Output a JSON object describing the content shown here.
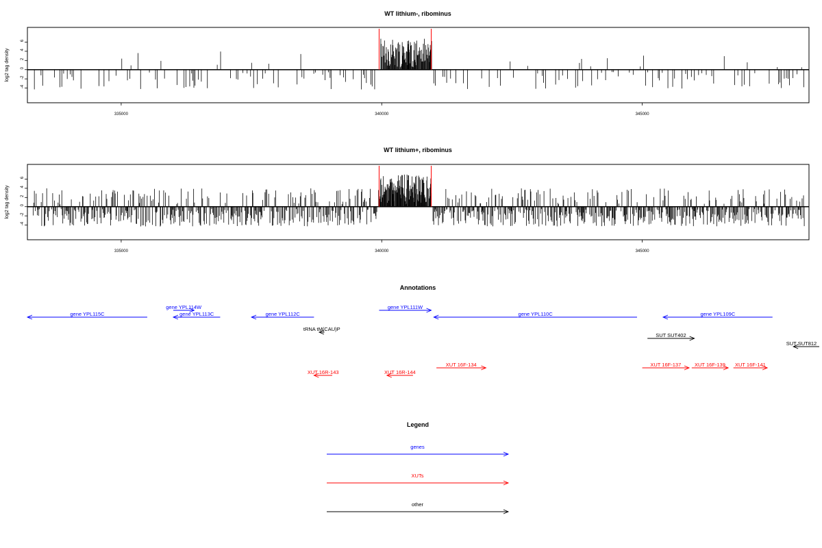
{
  "chart_data": [
    {
      "type": "bar",
      "title": "WT lithium-, ribominus",
      "ylabel": "log2 tag density",
      "xlim": [
        333200,
        348200
      ],
      "ylim": [
        -6,
        8
      ],
      "x_ticks": [
        335000,
        340000,
        345000
      ],
      "y_ticks": [
        -4,
        -2,
        0,
        2,
        4,
        6
      ],
      "grid": false,
      "region_markers": [
        339950,
        340950
      ],
      "density": "sparse"
    },
    {
      "type": "bar",
      "title": "WT lithium+, ribominus",
      "ylabel": "log2 tag density",
      "xlim": [
        333200,
        348200
      ],
      "ylim": [
        -6,
        8
      ],
      "x_ticks": [
        335000,
        340000,
        345000
      ],
      "y_ticks": [
        -4,
        -2,
        0,
        2,
        4,
        6
      ],
      "grid": false,
      "region_markers": [
        339950,
        340950
      ],
      "density": "dense"
    }
  ],
  "annotations": {
    "title": "Annotations",
    "features": [
      {
        "label": "gene YPL115C",
        "type": "genes",
        "start": 333200,
        "end": 335500,
        "strand": "-",
        "row": 1
      },
      {
        "label": "gene YPL114W",
        "type": "genes",
        "start": 336000,
        "end": 336400,
        "strand": "+",
        "row": 0
      },
      {
        "label": "gene YPL113C",
        "type": "genes",
        "start": 336000,
        "end": 336900,
        "strand": "-",
        "row": 1
      },
      {
        "label": "gene YPL112C",
        "type": "genes",
        "start": 337500,
        "end": 338700,
        "strand": "-",
        "row": 1
      },
      {
        "label": "tRNA tM(CAU)P",
        "type": "other",
        "start": 338800,
        "end": 338900,
        "strand": "-",
        "row": 2
      },
      {
        "label": "gene YPL111W",
        "type": "genes",
        "start": 339950,
        "end": 340950,
        "strand": "+",
        "row": 0
      },
      {
        "label": "gene YPL110C",
        "type": "genes",
        "start": 341000,
        "end": 344900,
        "strand": "-",
        "row": 1
      },
      {
        "label": "gene YPL109C",
        "type": "genes",
        "start": 345400,
        "end": 347500,
        "strand": "-",
        "row": 1
      },
      {
        "label": "SUT SUT402",
        "type": "other",
        "start": 345100,
        "end": 346000,
        "strand": "+",
        "row": 3
      },
      {
        "label": "SUT SUT812",
        "type": "other",
        "start": 347900,
        "end": 348500,
        "strand": "-",
        "row": 4
      },
      {
        "label": "XUT 16R-143",
        "type": "XUTs",
        "start": 338700,
        "end": 339050,
        "strand": "-",
        "row": 6
      },
      {
        "label": "XUT 16R-144",
        "type": "XUTs",
        "start": 340100,
        "end": 340600,
        "strand": "-",
        "row": 6
      },
      {
        "label": "XUT 16F-134",
        "type": "XUTs",
        "start": 341050,
        "end": 342000,
        "strand": "+",
        "row": 5
      },
      {
        "label": "XUT 16F-137",
        "type": "XUTs",
        "start": 345000,
        "end": 345900,
        "strand": "+",
        "row": 5
      },
      {
        "label": "XUT 16F-139",
        "type": "XUTs",
        "start": 345950,
        "end": 346650,
        "strand": "+",
        "row": 5
      },
      {
        "label": "XUT 16F-141",
        "type": "XUTs",
        "start": 346750,
        "end": 347400,
        "strand": "+",
        "row": 5
      }
    ]
  },
  "legend": {
    "title": "Legend",
    "entries": [
      {
        "label": "genes",
        "color": "#0000ff"
      },
      {
        "label": "XUTs",
        "color": "#ff0000"
      },
      {
        "label": "other",
        "color": "#000000"
      }
    ]
  },
  "colors": {
    "genes": "#0000ff",
    "XUTs": "#ff0000",
    "other": "#000000",
    "marker": "#ff0000",
    "bars": "#000000"
  }
}
